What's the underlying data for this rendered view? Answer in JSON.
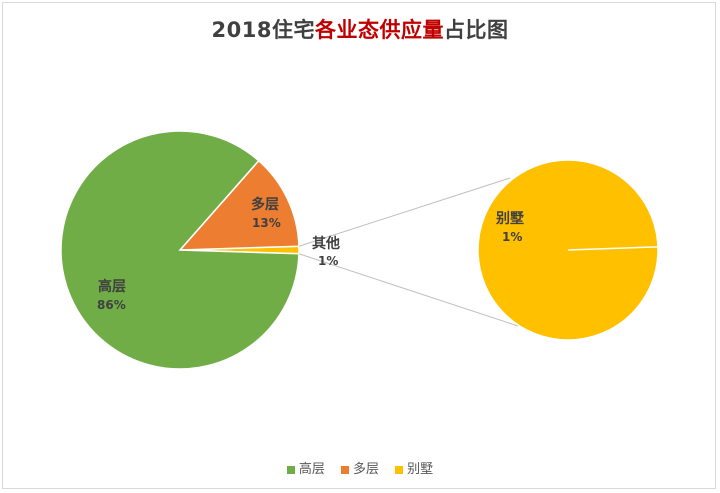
{
  "title": {
    "prefix": "2018住宅",
    "highlight": "各业态供应量",
    "suffix": "占比图"
  },
  "colors": {
    "high_rise": "#70ad47",
    "multi_story": "#ed7d31",
    "villa": "#ffc000",
    "connector": "#bfbfbf"
  },
  "chart_data": {
    "type": "pie",
    "subtype": "pie-of-pie",
    "title": "2018住宅各业态供应量占比图",
    "main": [
      {
        "name": "高层",
        "value": 86,
        "label": "高层",
        "pct": "86%"
      },
      {
        "name": "多层",
        "value": 13,
        "label": "多层",
        "pct": "13%"
      },
      {
        "name": "其他",
        "value": 1,
        "label": "其他",
        "pct": "1%"
      }
    ],
    "secondary": [
      {
        "name": "别墅",
        "value": 1,
        "label": "别墅",
        "pct": "1%"
      }
    ],
    "legend": [
      "高层",
      "多层",
      "别墅"
    ],
    "legend_position": "bottom"
  }
}
